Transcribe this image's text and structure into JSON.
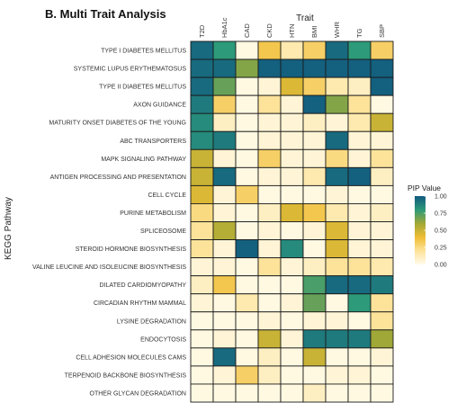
{
  "chart_data": {
    "type": "heatmap",
    "title": "B. Multi Trait Analysis",
    "xlabel": "Trait",
    "ylabel": "KEGG Pathway",
    "x": [
      "T2D",
      "HbA1c",
      "CAD",
      "CKD",
      "HTN",
      "BMI",
      "WHR",
      "TG",
      "SBP"
    ],
    "y": [
      "TYPE I DIABETES MELLITUS",
      "SYSTEMIC LUPUS ERYTHEMATOSUS",
      "TYPE II DIABETES MELLITUS",
      "AXON GUIDANCE",
      "MATURITY ONSET DIABETES OF THE YOUNG",
      "ABC TRANSPORTERS",
      "MAPK SIGNALING PATHWAY",
      "ANTIGEN PROCESSING AND PRESENTATION",
      "CELL CYCLE",
      "PURINE METABOLISM",
      "SPLICEOSOME",
      "STEROID HORMONE BIOSYNTHESIS",
      "VALINE LEUCINE AND ISOLEUCINE BIOSYNTHESIS",
      "DILATED CARDIOMYOPATHY",
      "CIRCADIAN RHYTHM MAMMAL",
      "LYSINE DEGRADATION",
      "ENDOCYTOSIS",
      "CELL ADHESION MOLECULES CAMS",
      "TERPENOID BACKBONE BIOSYNTHESIS",
      "OTHER GLYCAN DEGRADATION"
    ],
    "values": [
      [
        0.95,
        0.8,
        0.02,
        0.35,
        0.15,
        0.3,
        0.95,
        0.8,
        0.3
      ],
      [
        0.95,
        0.95,
        0.65,
        0.98,
        0.98,
        0.98,
        0.98,
        0.98,
        0.98
      ],
      [
        0.95,
        0.7,
        0.02,
        0.05,
        0.45,
        0.3,
        0.15,
        0.1,
        0.98
      ],
      [
        0.9,
        0.3,
        0.02,
        0.2,
        0.05,
        0.98,
        0.65,
        0.2,
        0.02
      ],
      [
        0.85,
        0.1,
        0.02,
        0.05,
        0.05,
        0.1,
        0.05,
        0.15,
        0.5
      ],
      [
        0.85,
        0.9,
        0.02,
        0.05,
        0.05,
        0.05,
        0.95,
        0.05,
        0.05
      ],
      [
        0.5,
        0.05,
        0.02,
        0.3,
        0.05,
        0.05,
        0.25,
        0.05,
        0.2
      ],
      [
        0.5,
        0.95,
        0.02,
        0.05,
        0.05,
        0.15,
        0.95,
        0.98,
        0.1
      ],
      [
        0.45,
        0.05,
        0.3,
        0.02,
        0.02,
        0.02,
        0.05,
        0.02,
        0.02
      ],
      [
        0.25,
        0.05,
        0.02,
        0.1,
        0.45,
        0.35,
        0.15,
        0.05,
        0.1
      ],
      [
        0.2,
        0.55,
        0.02,
        0.05,
        0.02,
        0.05,
        0.45,
        0.05,
        0.05
      ],
      [
        0.2,
        0.05,
        0.98,
        0.05,
        0.85,
        0.02,
        0.45,
        0.05,
        0.05
      ],
      [
        0.05,
        0.05,
        0.02,
        0.2,
        0.05,
        0.1,
        0.2,
        0.2,
        0.15
      ],
      [
        0.1,
        0.35,
        0.02,
        0.02,
        0.02,
        0.75,
        0.95,
        0.95,
        0.9
      ],
      [
        0.05,
        0.02,
        0.15,
        0.02,
        0.05,
        0.7,
        0.02,
        0.8,
        0.2
      ],
      [
        0.02,
        0.02,
        0.02,
        0.05,
        0.02,
        0.05,
        0.05,
        0.02,
        0.2
      ],
      [
        0.02,
        0.05,
        0.02,
        0.5,
        0.05,
        0.9,
        0.9,
        0.9,
        0.6
      ],
      [
        0.02,
        0.95,
        0.02,
        0.1,
        0.02,
        0.5,
        0.02,
        0.02,
        0.05
      ],
      [
        0.02,
        0.05,
        0.3,
        0.1,
        0.02,
        0.02,
        0.05,
        0.05,
        0.02
      ],
      [
        0.02,
        0.02,
        0.02,
        0.02,
        0.02,
        0.1,
        0.02,
        0.02,
        0.02
      ]
    ],
    "scale": {
      "min": 0.0,
      "max": 1.0
    },
    "legend": {
      "title": "PIP Value",
      "ticks": [
        "1.00",
        "0.75",
        "0.50",
        "0.25",
        "0.00"
      ],
      "placement": "right"
    },
    "colors": {
      "stops": [
        "#fffbea",
        "#fde39a",
        "#efbd34",
        "#a0a837",
        "#2d9a7a",
        "#115a80"
      ]
    },
    "grid": true
  }
}
